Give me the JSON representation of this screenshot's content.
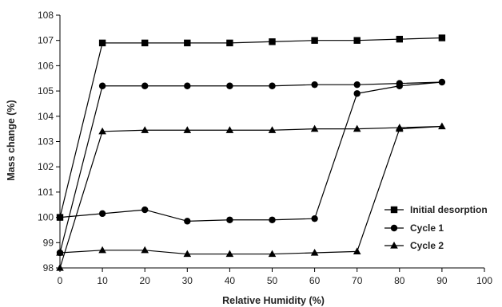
{
  "chart_data": {
    "type": "line",
    "xlabel": "Relative Humidity (%)",
    "ylabel": "Mass change (%)",
    "xlim": [
      0,
      100
    ],
    "ylim": [
      98,
      108
    ],
    "x_ticks": [
      0,
      10,
      20,
      30,
      40,
      50,
      60,
      70,
      80,
      90,
      100
    ],
    "y_ticks": [
      98,
      99,
      100,
      101,
      102,
      103,
      104,
      105,
      106,
      107,
      108
    ],
    "grid": false,
    "legend_position": "bottom-right",
    "series": [
      {
        "name": "Initial desorption",
        "marker": "square",
        "color": "#000000",
        "points": [
          [
            0,
            100.0
          ],
          [
            10,
            106.9
          ],
          [
            20,
            106.9
          ],
          [
            30,
            106.9
          ],
          [
            40,
            106.9
          ],
          [
            50,
            106.95
          ],
          [
            60,
            107.0
          ],
          [
            70,
            107.0
          ],
          [
            80,
            107.05
          ],
          [
            90,
            107.1
          ]
        ]
      },
      {
        "name": "Cycle 1",
        "marker": "circle",
        "color": "#000000",
        "points": [
          [
            0,
            98.6
          ],
          [
            10,
            105.2
          ],
          [
            20,
            105.2
          ],
          [
            30,
            105.2
          ],
          [
            40,
            105.2
          ],
          [
            50,
            105.2
          ],
          [
            60,
            105.25
          ],
          [
            70,
            105.25
          ],
          [
            80,
            105.3
          ],
          [
            90,
            105.35
          ],
          [
            80,
            105.2
          ],
          [
            70,
            104.9
          ],
          [
            60,
            99.95
          ],
          [
            50,
            99.9
          ],
          [
            40,
            99.9
          ],
          [
            30,
            99.85
          ],
          [
            20,
            100.3
          ],
          [
            10,
            100.15
          ],
          [
            0,
            100.0
          ]
        ]
      },
      {
        "name": "Cycle 2",
        "marker": "triangle",
        "color": "#000000",
        "points": [
          [
            0,
            98.0
          ],
          [
            10,
            103.4
          ],
          [
            20,
            103.45
          ],
          [
            30,
            103.45
          ],
          [
            40,
            103.45
          ],
          [
            50,
            103.45
          ],
          [
            60,
            103.5
          ],
          [
            70,
            103.5
          ],
          [
            80,
            103.55
          ],
          [
            90,
            103.6
          ],
          [
            80,
            103.5
          ],
          [
            70,
            98.65
          ],
          [
            60,
            98.6
          ],
          [
            50,
            98.55
          ],
          [
            40,
            98.55
          ],
          [
            30,
            98.55
          ],
          [
            20,
            98.7
          ],
          [
            10,
            98.7
          ],
          [
            0,
            98.6
          ]
        ]
      }
    ]
  }
}
